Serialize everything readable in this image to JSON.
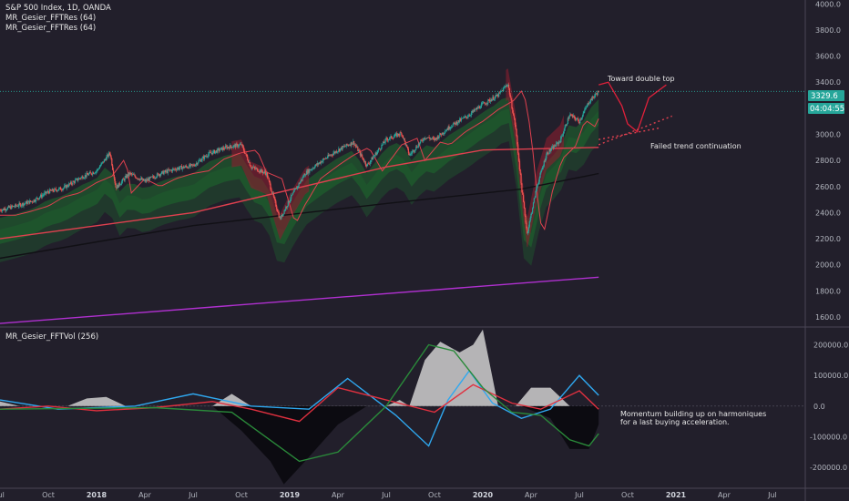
{
  "header": {
    "title": "S&P 500 Index, 1D, OANDA",
    "indicators": [
      "MR_Gesier_FFTRes (64)",
      "MR_Gesier_FFTRes (64)"
    ]
  },
  "sub_pane": {
    "title": "MR_Gesier_FFTVol (256)"
  },
  "price_tag": {
    "value": "3329.6",
    "countdown": "04:04:55",
    "color": "#26a69a"
  },
  "annotations": {
    "double_top": "Toward double top",
    "failed_trend": "Failed trend continuation",
    "momentum": [
      "Momentum building up on harmoniques",
      "for a last buying acceleration."
    ]
  },
  "colors": {
    "background": "#221f2b",
    "bull": "#26a69a",
    "bear": "#ef5350",
    "green_band": "#1e6b2e",
    "red_band": "#8b1e2e",
    "purple": "#b030d0",
    "blue": "#2fa8f0",
    "white_area": "#cfcfcf"
  },
  "chart_data": [
    {
      "type": "candlestick",
      "title": "S&P 500 Index, 1D, OANDA",
      "y_ticks": [
        "1600.0",
        "1800.0",
        "2000.0",
        "2200.0",
        "2400.0",
        "2600.0",
        "2800.0",
        "3000.0",
        "3200.0",
        "3400.0",
        "3600.0",
        "3800.0",
        "4000.0"
      ],
      "ylim": [
        1530,
        4030
      ],
      "x_labels": [
        "Jul",
        "Oct",
        "2018",
        "Apr",
        "Jul",
        "Oct",
        "2019",
        "Apr",
        "Jul",
        "Oct",
        "2020",
        "Apr",
        "Jul",
        "Oct",
        "2021",
        "Apr",
        "Jul"
      ],
      "x_label_year": [
        false,
        false,
        true,
        false,
        false,
        false,
        true,
        false,
        false,
        false,
        true,
        false,
        false,
        false,
        true,
        false,
        false
      ],
      "x_start": 2017.5,
      "x_end": 2021.67,
      "price_path": [
        {
          "t": 2017.5,
          "v": 2420
        },
        {
          "t": 2017.58,
          "v": 2450
        },
        {
          "t": 2017.67,
          "v": 2490
        },
        {
          "t": 2017.75,
          "v": 2560
        },
        {
          "t": 2017.83,
          "v": 2590
        },
        {
          "t": 2017.92,
          "v": 2670
        },
        {
          "t": 2018.0,
          "v": 2720
        },
        {
          "t": 2018.07,
          "v": 2860
        },
        {
          "t": 2018.1,
          "v": 2590
        },
        {
          "t": 2018.17,
          "v": 2700
        },
        {
          "t": 2018.25,
          "v": 2640
        },
        {
          "t": 2018.33,
          "v": 2700
        },
        {
          "t": 2018.42,
          "v": 2740
        },
        {
          "t": 2018.5,
          "v": 2760
        },
        {
          "t": 2018.58,
          "v": 2850
        },
        {
          "t": 2018.67,
          "v": 2900
        },
        {
          "t": 2018.75,
          "v": 2920
        },
        {
          "t": 2018.8,
          "v": 2750
        },
        {
          "t": 2018.88,
          "v": 2700
        },
        {
          "t": 2018.95,
          "v": 2350
        },
        {
          "t": 2019.0,
          "v": 2500
        },
        {
          "t": 2019.08,
          "v": 2700
        },
        {
          "t": 2019.17,
          "v": 2800
        },
        {
          "t": 2019.25,
          "v": 2880
        },
        {
          "t": 2019.33,
          "v": 2940
        },
        {
          "t": 2019.4,
          "v": 2760
        },
        {
          "t": 2019.5,
          "v": 2960
        },
        {
          "t": 2019.58,
          "v": 3010
        },
        {
          "t": 2019.62,
          "v": 2840
        },
        {
          "t": 2019.7,
          "v": 2980
        },
        {
          "t": 2019.75,
          "v": 2960
        },
        {
          "t": 2019.83,
          "v": 3060
        },
        {
          "t": 2019.92,
          "v": 3140
        },
        {
          "t": 2020.0,
          "v": 3230
        },
        {
          "t": 2020.08,
          "v": 3300
        },
        {
          "t": 2020.13,
          "v": 3390
        },
        {
          "t": 2020.17,
          "v": 3050
        },
        {
          "t": 2020.2,
          "v": 2600
        },
        {
          "t": 2020.23,
          "v": 2240
        },
        {
          "t": 2020.28,
          "v": 2600
        },
        {
          "t": 2020.33,
          "v": 2850
        },
        {
          "t": 2020.4,
          "v": 2950
        },
        {
          "t": 2020.45,
          "v": 3150
        },
        {
          "t": 2020.5,
          "v": 3100
        },
        {
          "t": 2020.55,
          "v": 3250
        },
        {
          "t": 2020.6,
          "v": 3330
        }
      ],
      "last_price": 3329.6,
      "sma_levels": [
        {
          "name": "purple",
          "points": [
            {
              "t": 2017.5,
              "v": 1550
            },
            {
              "t": 2020.6,
              "v": 1905
            }
          ]
        },
        {
          "name": "red_long",
          "points": [
            {
              "t": 2017.5,
              "v": 2200
            },
            {
              "t": 2018.5,
              "v": 2400
            },
            {
              "t": 2019.5,
              "v": 2750
            },
            {
              "t": 2020.0,
              "v": 2880
            },
            {
              "t": 2020.6,
              "v": 2900
            }
          ]
        },
        {
          "name": "black_long",
          "points": [
            {
              "t": 2017.5,
              "v": 2050
            },
            {
              "t": 2018.5,
              "v": 2300
            },
            {
              "t": 2019.5,
              "v": 2470
            },
            {
              "t": 2020.2,
              "v": 2580
            },
            {
              "t": 2020.6,
              "v": 2700
            }
          ]
        }
      ],
      "projection": [
        {
          "t": 2020.6,
          "v": 3380
        },
        {
          "t": 2020.65,
          "v": 3400
        },
        {
          "t": 2020.72,
          "v": 3220
        },
        {
          "t": 2020.75,
          "v": 3080
        },
        {
          "t": 2020.8,
          "v": 3020
        },
        {
          "t": 2020.86,
          "v": 3280
        },
        {
          "t": 2020.95,
          "v": 3380
        }
      ]
    },
    {
      "type": "area",
      "title": "MR_Gesier_FFTVol (256)",
      "y_ticks": [
        "200000.0",
        "100000.0",
        "0.0",
        "-100000.0",
        "-200000.0"
      ],
      "ylim": [
        -265000,
        255000
      ],
      "series": [
        {
          "name": "white",
          "points": [
            {
              "t": 2017.5,
              "v": 15000
            },
            {
              "t": 2017.6,
              "v": 0
            },
            {
              "t": 2017.85,
              "v": 0
            },
            {
              "t": 2017.95,
              "v": 25000
            },
            {
              "t": 2018.05,
              "v": 30000
            },
            {
              "t": 2018.15,
              "v": 0
            },
            {
              "t": 2018.6,
              "v": 0
            },
            {
              "t": 2018.7,
              "v": 40000
            },
            {
              "t": 2018.8,
              "v": 0
            },
            {
              "t": 2019.5,
              "v": 0
            },
            {
              "t": 2019.57,
              "v": 20000
            },
            {
              "t": 2019.62,
              "v": 0
            },
            {
              "t": 2019.7,
              "v": 150000
            },
            {
              "t": 2019.78,
              "v": 210000
            },
            {
              "t": 2019.88,
              "v": 175000
            },
            {
              "t": 2019.95,
              "v": 200000
            },
            {
              "t": 2020.0,
              "v": 250000
            },
            {
              "t": 2020.08,
              "v": 0
            },
            {
              "t": 2020.17,
              "v": 0
            },
            {
              "t": 2020.25,
              "v": 60000
            },
            {
              "t": 2020.35,
              "v": 60000
            },
            {
              "t": 2020.45,
              "v": 0
            }
          ]
        },
        {
          "name": "black",
          "points": [
            {
              "t": 2017.5,
              "v": 0
            },
            {
              "t": 2018.6,
              "v": 0
            },
            {
              "t": 2018.75,
              "v": -80000
            },
            {
              "t": 2018.9,
              "v": -180000
            },
            {
              "t": 2018.97,
              "v": -255000
            },
            {
              "t": 2019.08,
              "v": -180000
            },
            {
              "t": 2019.25,
              "v": -60000
            },
            {
              "t": 2019.4,
              "v": 0
            },
            {
              "t": 2020.2,
              "v": 0
            },
            {
              "t": 2020.35,
              "v": -40000
            },
            {
              "t": 2020.45,
              "v": -140000
            },
            {
              "t": 2020.55,
              "v": -140000
            },
            {
              "t": 2020.6,
              "v": -60000
            }
          ]
        },
        {
          "name": "blue",
          "points": [
            {
              "t": 2017.5,
              "v": 20000
            },
            {
              "t": 2017.8,
              "v": -10000
            },
            {
              "t": 2018.2,
              "v": 0
            },
            {
              "t": 2018.5,
              "v": 40000
            },
            {
              "t": 2018.8,
              "v": 0
            },
            {
              "t": 2019.1,
              "v": -10000
            },
            {
              "t": 2019.3,
              "v": 90000
            },
            {
              "t": 2019.55,
              "v": -30000
            },
            {
              "t": 2019.72,
              "v": -130000
            },
            {
              "t": 2019.82,
              "v": 20000
            },
            {
              "t": 2019.93,
              "v": 115000
            },
            {
              "t": 2020.05,
              "v": 10000
            },
            {
              "t": 2020.2,
              "v": -40000
            },
            {
              "t": 2020.35,
              "v": -10000
            },
            {
              "t": 2020.5,
              "v": 100000
            },
            {
              "t": 2020.6,
              "v": 35000
            }
          ]
        },
        {
          "name": "red",
          "points": [
            {
              "t": 2017.5,
              "v": -10000
            },
            {
              "t": 2017.75,
              "v": 0
            },
            {
              "t": 2018.0,
              "v": -15000
            },
            {
              "t": 2018.3,
              "v": -5000
            },
            {
              "t": 2018.6,
              "v": 15000
            },
            {
              "t": 2018.8,
              "v": -10000
            },
            {
              "t": 2019.05,
              "v": -50000
            },
            {
              "t": 2019.25,
              "v": 60000
            },
            {
              "t": 2019.5,
              "v": 20000
            },
            {
              "t": 2019.75,
              "v": -20000
            },
            {
              "t": 2019.95,
              "v": 70000
            },
            {
              "t": 2020.15,
              "v": 10000
            },
            {
              "t": 2020.3,
              "v": -10000
            },
            {
              "t": 2020.5,
              "v": 50000
            },
            {
              "t": 2020.6,
              "v": -10000
            }
          ]
        },
        {
          "name": "green",
          "points": [
            {
              "t": 2017.5,
              "v": -10000
            },
            {
              "t": 2018.3,
              "v": -5000
            },
            {
              "t": 2018.7,
              "v": -20000
            },
            {
              "t": 2019.05,
              "v": -180000
            },
            {
              "t": 2019.25,
              "v": -150000
            },
            {
              "t": 2019.5,
              "v": 0
            },
            {
              "t": 2019.72,
              "v": 200000
            },
            {
              "t": 2019.85,
              "v": 180000
            },
            {
              "t": 2020.0,
              "v": 60000
            },
            {
              "t": 2020.15,
              "v": -20000
            },
            {
              "t": 2020.3,
              "v": -30000
            },
            {
              "t": 2020.45,
              "v": -110000
            },
            {
              "t": 2020.55,
              "v": -130000
            },
            {
              "t": 2020.6,
              "v": -90000
            }
          ]
        }
      ]
    }
  ]
}
